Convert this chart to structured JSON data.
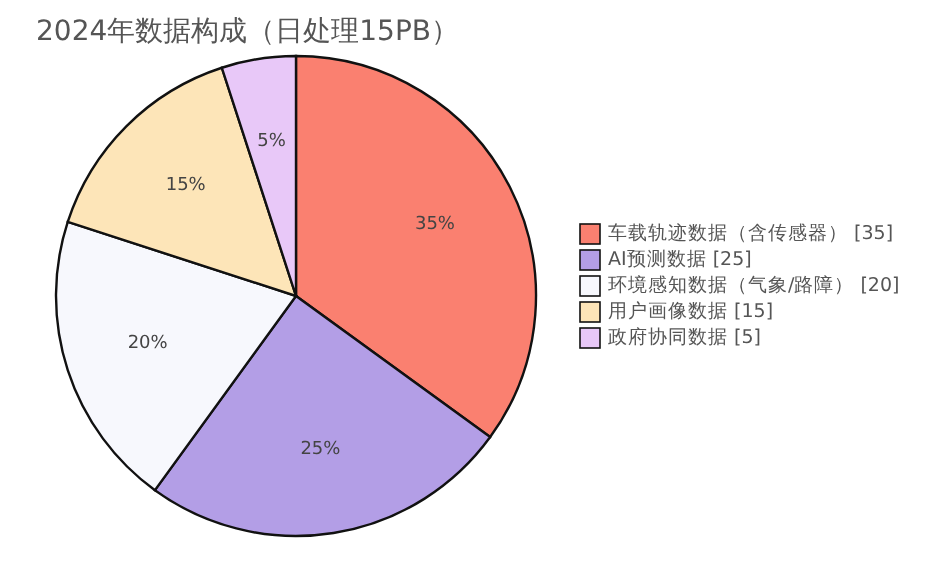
{
  "chart_data": {
    "type": "pie",
    "title": "2024年数据构成（日处理15PB）",
    "categories": [
      "车载轨迹数据（含传感器） [35]",
      "AI预测数据 [25]",
      "环境感知数据（气象/路障） [20]",
      "用户画像数据 [15]",
      "政府协同数据 [5]"
    ],
    "values": [
      35,
      25,
      20,
      15,
      5
    ],
    "value_labels": [
      "35%",
      "25%",
      "20%",
      "15%",
      "5%"
    ],
    "colors": [
      "#fa8070",
      "#b39ee6",
      "#f7f8fd",
      "#fde5b8",
      "#e8c8f8"
    ],
    "legend": "right"
  }
}
